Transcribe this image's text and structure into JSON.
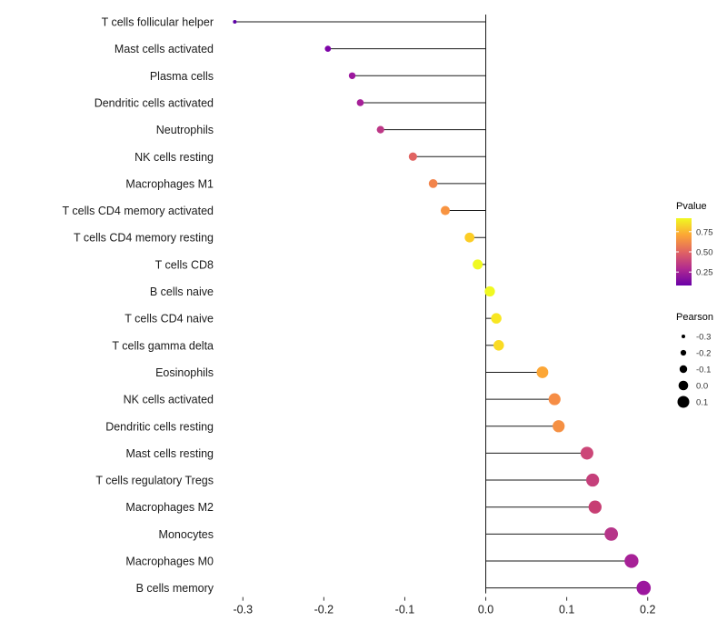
{
  "chart_data": {
    "type": "lollipop",
    "title": "",
    "xlabel": "",
    "ylabel": "",
    "xlim": [
      -0.325,
      0.225
    ],
    "x_ticks": [
      -0.3,
      -0.2,
      -0.1,
      0.0,
      0.1,
      0.2
    ],
    "x_tick_labels": [
      "-0.3",
      "-0.2",
      "-0.1",
      "0.0",
      "0.1",
      "0.2"
    ],
    "grid": false,
    "categories": [
      "T cells follicular helper",
      "Mast cells activated",
      "Plasma cells",
      "Dendritic cells activated",
      "Neutrophils",
      "NK cells resting",
      "Macrophages M1",
      "T cells CD4 memory activated",
      "T cells CD4 memory resting",
      "T cells CD8",
      "B cells naive",
      "T cells CD4 naive",
      "T cells gamma delta",
      "Eosinophils",
      "NK cells activated",
      "Dendritic cells resting",
      "Mast cells resting",
      "T cells regulatory  Tregs",
      "Macrophages M2",
      "Monocytes",
      "Macrophages M0",
      "B cells memory"
    ],
    "values": [
      -0.31,
      -0.195,
      -0.165,
      -0.155,
      -0.13,
      -0.09,
      -0.065,
      -0.05,
      -0.02,
      -0.01,
      0.005,
      0.013,
      0.016,
      0.07,
      0.085,
      0.09,
      0.125,
      0.132,
      0.135,
      0.155,
      0.18,
      0.195
    ],
    "point_colors": [
      "#5d01a6",
      "#7e03a8",
      "#9c179e",
      "#a62098",
      "#bd3786",
      "#e16462",
      "#f2844b",
      "#f89441",
      "#fccd25",
      "#f0f921",
      "#f0f921",
      "#f8e621",
      "#fadb24",
      "#fca636",
      "#f68d45",
      "#f59043",
      "#cc4778",
      "#c5407b",
      "#c73e73",
      "#b63589",
      "#a72197",
      "#9c179e"
    ],
    "stem_color": "#1a1a1a",
    "legend_pvalue": {
      "title": "Pvalue",
      "tick_labels": [
        "0.75",
        "0.50",
        "0.25"
      ],
      "gradient_stops": [
        "#f0f921",
        "#fca636",
        "#e16462",
        "#b12a90",
        "#6a00a8"
      ]
    },
    "legend_pearson": {
      "title": "Pearson",
      "size_labels": [
        "-0.3",
        "-0.2",
        "-0.1",
        "0.0",
        "0.1"
      ],
      "size_radii": [
        2.0,
        3.1,
        4.2,
        5.3,
        6.5
      ],
      "dot_color": "#000000"
    }
  }
}
